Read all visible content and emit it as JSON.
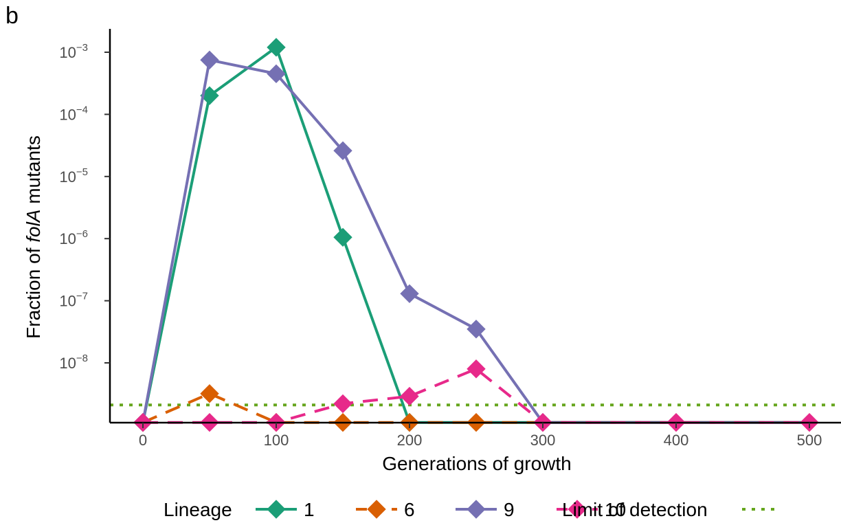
{
  "panel_label": "b",
  "chart_data": {
    "type": "line",
    "xlabel": "Generations of growth",
    "ylabel_prefix": "Fraction of ",
    "ylabel_italic": "folA",
    "ylabel_suffix": " mutants",
    "x_ticks": [
      0,
      100,
      200,
      300,
      400,
      500
    ],
    "y_scale": "log10",
    "y_ticks": [
      {
        "exp": -8,
        "label": "10",
        "sup": "−8"
      },
      {
        "exp": -7,
        "label": "10",
        "sup": "−7"
      },
      {
        "exp": -6,
        "label": "10",
        "sup": "−6"
      },
      {
        "exp": -5,
        "label": "10",
        "sup": "−5"
      },
      {
        "exp": -4,
        "label": "10",
        "sup": "−4"
      },
      {
        "exp": -3,
        "label": "10",
        "sup": "−3"
      }
    ],
    "xlim": [
      -25,
      525
    ],
    "ylim_log10": [
      -9.0,
      -2.75
    ],
    "detection_limit": 2.1e-09,
    "below_detection_value": 1.1e-09,
    "series": [
      {
        "name": "1",
        "color": "#1b9e77",
        "dash": "solid",
        "x": [
          0,
          50,
          100,
          150,
          200,
          250,
          300,
          350,
          400,
          450,
          500
        ],
        "y": [
          1.1e-09,
          0.0002,
          0.0012,
          1.05e-06,
          1.1e-09,
          1.1e-09,
          1.1e-09,
          1.1e-09,
          1.1e-09,
          1.1e-09,
          1.1e-09
        ],
        "markers": [
          0,
          1,
          2,
          3,
          4
        ]
      },
      {
        "name": "6",
        "color": "#d95f02",
        "dash": "dashed",
        "x": [
          0,
          50,
          100,
          150,
          200,
          250,
          300,
          350,
          400,
          450,
          500
        ],
        "y": [
          1.1e-09,
          3.2e-09,
          1.1e-09,
          1.1e-09,
          1.1e-09,
          1.1e-09,
          1.1e-09,
          1.1e-09,
          1.1e-09,
          1.1e-09,
          1.1e-09
        ],
        "markers": [
          0,
          1,
          2,
          3,
          4,
          5
        ]
      },
      {
        "name": "9",
        "color": "#7570b3",
        "dash": "solid",
        "x": [
          0,
          50,
          100,
          150,
          200,
          250,
          300,
          350,
          400,
          450,
          500
        ],
        "y": [
          1.1e-09,
          0.00075,
          0.00045,
          2.6e-05,
          1.3e-07,
          3.5e-08,
          1.1e-09,
          1.1e-09,
          1.1e-09,
          1.1e-09,
          1.1e-09
        ],
        "markers": [
          0,
          1,
          2,
          3,
          4,
          5,
          6
        ]
      },
      {
        "name": "10",
        "color": "#e7298a",
        "dash": "dashed",
        "x": [
          0,
          50,
          100,
          150,
          200,
          250,
          300,
          350,
          400,
          450,
          500
        ],
        "y": [
          1.1e-09,
          1.1e-09,
          1.1e-09,
          2.2e-09,
          2.9e-09,
          8e-09,
          1.1e-09,
          1.1e-09,
          1.1e-09,
          1.1e-09,
          1.1e-09
        ],
        "markers": [
          0,
          1,
          2,
          3,
          4,
          5,
          6,
          8,
          10
        ]
      }
    ],
    "limit_line": {
      "name": "Limit of detection",
      "color": "#66a61e"
    },
    "legend": {
      "title": "Lineage",
      "position": "bottom"
    },
    "grid": false
  }
}
